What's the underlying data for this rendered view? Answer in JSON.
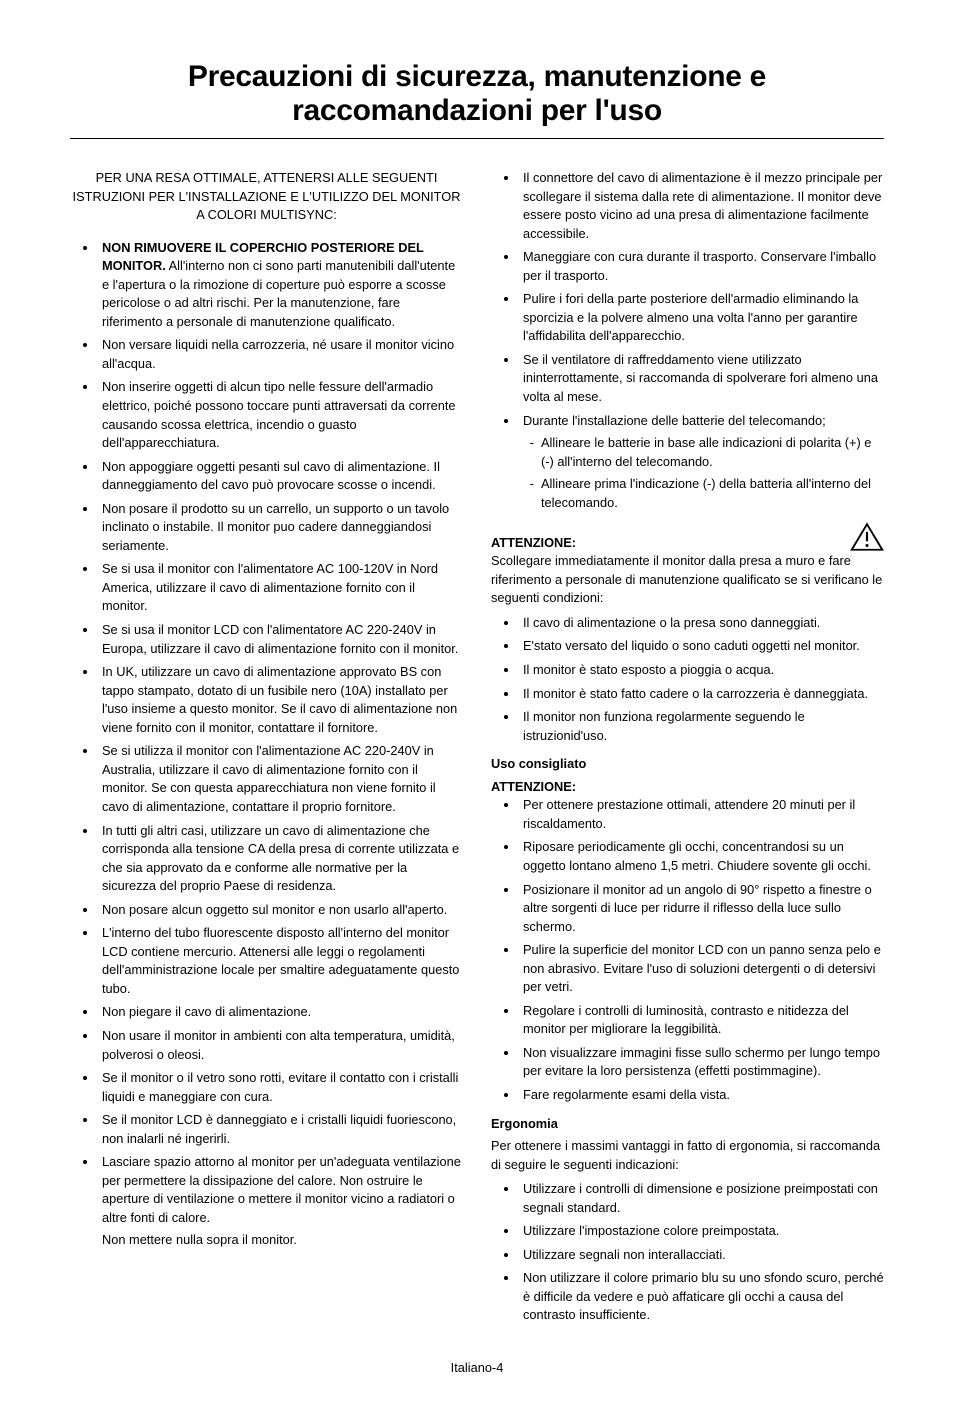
{
  "title": "Precauzioni di sicurezza, manutenzione e raccomandazioni per l'uso",
  "intro": "PER UNA RESA OTTIMALE, ATTENERSI ALLE SEGUENTI ISTRUZIONI PER L'INSTALLAZIONE E L'UTILIZZO DEL MONITOR A COLORI MULTISYNC:",
  "left": {
    "first_bold": "NON RIMUOVERE IL COPERCHIO POSTERIORE DEL MONITOR.",
    "first_rest": " All'interno non ci sono parti manutenibili dall'utente e l'apertura o la rimozione di coperture può esporre a scosse pericolose o ad altri rischi. Per la manutenzione, fare riferimento a personale di manutenzione qualificato.",
    "items": [
      "Non versare liquidi nella carrozzeria, né usare il monitor vicino all'acqua.",
      "Non inserire oggetti di alcun tipo nelle fessure dell'armadio elettrico, poiché possono toccare punti attraversati da corrente causando scossa elettrica, incendio o guasto dell'apparecchiatura.",
      "Non appoggiare oggetti pesanti sul cavo di alimentazione. Il danneggiamento del cavo può provocare scosse o incendi.",
      "Non posare il prodotto su un carrello, un supporto o un tavolo inclinato o instabile. Il monitor puo cadere danneggiandosi seriamente.",
      "Se si usa il monitor con l'alimentatore AC 100-120V in Nord America, utilizzare il cavo di alimentazione fornito con il monitor.",
      "Se si usa il monitor LCD con l'alimentatore AC 220-240V in Europa, utilizzare il cavo di alimentazione fornito con il monitor.",
      "In UK, utilizzare un cavo di alimentazione approvato BS con tappo stampato, dotato di un fusibile nero (10A) installato per l'uso insieme a questo monitor. Se il cavo di alimentazione non viene fornito con il monitor, contattare il fornitore.",
      "Se si utilizza il monitor con l'alimentazione AC 220-240V in Australia, utilizzare il cavo di alimentazione fornito con il monitor. Se con questa apparecchiatura non viene fornito il cavo di alimentazione, contattare il proprio fornitore.",
      "In tutti gli altri casi, utilizzare un cavo di alimentazione che corrisponda alla tensione CA della presa di corrente utilizzata e che sia approvato da e conforme alle normative per la sicurezza del proprio Paese di residenza.",
      "Non posare alcun oggetto sul monitor e non usarlo all'aperto.",
      "L'interno del tubo fluorescente disposto all'interno del monitor LCD contiene mercurio. Attenersi alle leggi o regolamenti dell'amministrazione locale per smaltire adeguatamente questo tubo.",
      "Non piegare il cavo di alimentazione.",
      "Non usare il monitor in ambienti con alta temperatura, umidità, polverosi o oleosi.",
      "Se il monitor o il vetro sono rotti, evitare il contatto con i cristalli liquidi e maneggiare con cura.",
      "Se il monitor LCD è danneggiato e i cristalli liquidi fuoriescono, non inalarli né ingerirli."
    ],
    "last_main": "Lasciare spazio attorno al monitor per un'adeguata ventilazione per permettere la dissipazione del calore. Non ostruire le aperture di ventilazione o mettere il monitor vicino a radiatori o altre fonti di calore.",
    "last_after": "Non mettere nulla sopra il monitor."
  },
  "right": {
    "top_items": [
      "Il connettore del cavo di alimentazione è il mezzo principale per scollegare il sistema dalla rete di alimentazione. Il monitor deve essere posto vicino ad una presa di alimentazione facilmente accessibile.",
      "Maneggiare con cura durante il trasporto. Conservare l'imballo per il trasporto.",
      "Pulire i fori della parte posteriore dell'armadio eliminando la sporcizia e la polvere almeno una volta l'anno per garantire l'affidabilita dell'apparecchio.",
      "Se il ventilatore di raffreddamento viene utilizzato ininterrottamente, si raccomanda di spolverare fori almeno una volta al mese."
    ],
    "battery_intro": "Durante l'installazione delle batterie del telecomando;",
    "battery_sub": [
      "Allineare le batterie in base alle indicazioni di polarita (+) e (-) all'interno del telecomando.",
      "Allineare prima l'indicazione (-) della batteria all'interno del telecomando."
    ],
    "att_label": "ATTENZIONE:",
    "att_text": "Scollegare immediatamente il monitor dalla presa a muro e fare riferimento a personale di manutenzione qualificato se si verificano le seguenti condizioni:",
    "att_items": [
      "Il cavo di alimentazione o la presa sono danneggiati.",
      "E'stato versato del liquido o sono caduti oggetti nel monitor.",
      "Il monitor è stato esposto a pioggia o acqua.",
      "Il monitor è stato fatto cadere o la carrozzeria è danneggiata.",
      "Il monitor non funziona regolarmente seguendo le istruzionid'uso."
    ],
    "uso_label": "Uso consigliato",
    "uso_att": "ATTENZIONE:",
    "uso_items": [
      "Per ottenere prestazione ottimali, attendere 20 minuti per il riscaldamento.",
      "Riposare periodicamente gli occhi, concentrandosi su un oggetto lontano almeno 1,5 metri. Chiudere sovente gli occhi.",
      "Posizionare il monitor ad un angolo di 90° rispetto a finestre o altre sorgenti di luce per ridurre il riflesso della luce sullo schermo.",
      "Pulire la superficie del monitor LCD con un panno senza pelo e non abrasivo. Evitare l'uso di soluzioni detergenti o di detersivi per vetri.",
      "Regolare i controlli di luminosità, contrasto e nitidezza del monitor per migliorare la leggibilità.",
      "Non visualizzare immagini fisse sullo schermo per lungo tempo per evitare la loro persistenza (effetti postimmagine).",
      "Fare regolarmente esami della vista."
    ],
    "ergo_label": "Ergonomia",
    "ergo_text": "Per ottenere i massimi vantaggi in fatto di ergonomia, si raccomanda di seguire le seguenti indicazioni:",
    "ergo_items": [
      "Utilizzare i controlli di dimensione e posizione preimpostati con segnali standard.",
      "Utilizzare l'impostazione colore preimpostata.",
      "Utilizzare segnali non interallacciati.",
      "Non utilizzare il colore primario blu su uno sfondo scuro, perché è difficile da vedere e può affaticare gli occhi a causa del contrasto insufficiente."
    ]
  },
  "footer": "Italiano-4",
  "colors": {
    "text": "#000000",
    "bg": "#ffffff",
    "rule": "#000000"
  }
}
